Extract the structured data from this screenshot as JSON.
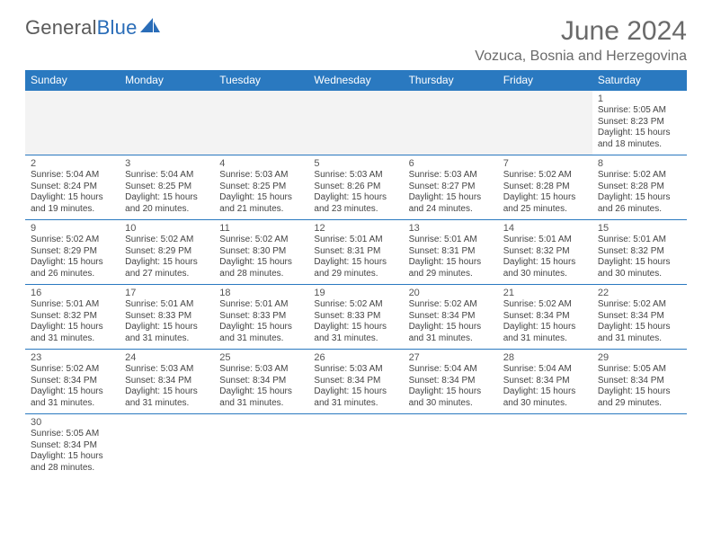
{
  "brand": {
    "part1": "General",
    "part2": "Blue"
  },
  "title": "June 2024",
  "location": "Vozuca, Bosnia and Herzegovina",
  "colors": {
    "header_bg": "#2a79c0",
    "header_text": "#ffffff",
    "border": "#2a79c0",
    "muted_text": "#6a6a6a",
    "body_text": "#444444",
    "brand_gray": "#5a5a5a",
    "brand_blue": "#2a6db8",
    "empty_bg": "#f3f3f3",
    "page_bg": "#ffffff"
  },
  "day_headers": [
    "Sunday",
    "Monday",
    "Tuesday",
    "Wednesday",
    "Thursday",
    "Friday",
    "Saturday"
  ],
  "weeks": [
    [
      null,
      null,
      null,
      null,
      null,
      null,
      {
        "n": "1",
        "sr": "Sunrise: 5:05 AM",
        "ss": "Sunset: 8:23 PM",
        "d1": "Daylight: 15 hours",
        "d2": "and 18 minutes."
      }
    ],
    [
      {
        "n": "2",
        "sr": "Sunrise: 5:04 AM",
        "ss": "Sunset: 8:24 PM",
        "d1": "Daylight: 15 hours",
        "d2": "and 19 minutes."
      },
      {
        "n": "3",
        "sr": "Sunrise: 5:04 AM",
        "ss": "Sunset: 8:25 PM",
        "d1": "Daylight: 15 hours",
        "d2": "and 20 minutes."
      },
      {
        "n": "4",
        "sr": "Sunrise: 5:03 AM",
        "ss": "Sunset: 8:25 PM",
        "d1": "Daylight: 15 hours",
        "d2": "and 21 minutes."
      },
      {
        "n": "5",
        "sr": "Sunrise: 5:03 AM",
        "ss": "Sunset: 8:26 PM",
        "d1": "Daylight: 15 hours",
        "d2": "and 23 minutes."
      },
      {
        "n": "6",
        "sr": "Sunrise: 5:03 AM",
        "ss": "Sunset: 8:27 PM",
        "d1": "Daylight: 15 hours",
        "d2": "and 24 minutes."
      },
      {
        "n": "7",
        "sr": "Sunrise: 5:02 AM",
        "ss": "Sunset: 8:28 PM",
        "d1": "Daylight: 15 hours",
        "d2": "and 25 minutes."
      },
      {
        "n": "8",
        "sr": "Sunrise: 5:02 AM",
        "ss": "Sunset: 8:28 PM",
        "d1": "Daylight: 15 hours",
        "d2": "and 26 minutes."
      }
    ],
    [
      {
        "n": "9",
        "sr": "Sunrise: 5:02 AM",
        "ss": "Sunset: 8:29 PM",
        "d1": "Daylight: 15 hours",
        "d2": "and 26 minutes."
      },
      {
        "n": "10",
        "sr": "Sunrise: 5:02 AM",
        "ss": "Sunset: 8:29 PM",
        "d1": "Daylight: 15 hours",
        "d2": "and 27 minutes."
      },
      {
        "n": "11",
        "sr": "Sunrise: 5:02 AM",
        "ss": "Sunset: 8:30 PM",
        "d1": "Daylight: 15 hours",
        "d2": "and 28 minutes."
      },
      {
        "n": "12",
        "sr": "Sunrise: 5:01 AM",
        "ss": "Sunset: 8:31 PM",
        "d1": "Daylight: 15 hours",
        "d2": "and 29 minutes."
      },
      {
        "n": "13",
        "sr": "Sunrise: 5:01 AM",
        "ss": "Sunset: 8:31 PM",
        "d1": "Daylight: 15 hours",
        "d2": "and 29 minutes."
      },
      {
        "n": "14",
        "sr": "Sunrise: 5:01 AM",
        "ss": "Sunset: 8:32 PM",
        "d1": "Daylight: 15 hours",
        "d2": "and 30 minutes."
      },
      {
        "n": "15",
        "sr": "Sunrise: 5:01 AM",
        "ss": "Sunset: 8:32 PM",
        "d1": "Daylight: 15 hours",
        "d2": "and 30 minutes."
      }
    ],
    [
      {
        "n": "16",
        "sr": "Sunrise: 5:01 AM",
        "ss": "Sunset: 8:32 PM",
        "d1": "Daylight: 15 hours",
        "d2": "and 31 minutes."
      },
      {
        "n": "17",
        "sr": "Sunrise: 5:01 AM",
        "ss": "Sunset: 8:33 PM",
        "d1": "Daylight: 15 hours",
        "d2": "and 31 minutes."
      },
      {
        "n": "18",
        "sr": "Sunrise: 5:01 AM",
        "ss": "Sunset: 8:33 PM",
        "d1": "Daylight: 15 hours",
        "d2": "and 31 minutes."
      },
      {
        "n": "19",
        "sr": "Sunrise: 5:02 AM",
        "ss": "Sunset: 8:33 PM",
        "d1": "Daylight: 15 hours",
        "d2": "and 31 minutes."
      },
      {
        "n": "20",
        "sr": "Sunrise: 5:02 AM",
        "ss": "Sunset: 8:34 PM",
        "d1": "Daylight: 15 hours",
        "d2": "and 31 minutes."
      },
      {
        "n": "21",
        "sr": "Sunrise: 5:02 AM",
        "ss": "Sunset: 8:34 PM",
        "d1": "Daylight: 15 hours",
        "d2": "and 31 minutes."
      },
      {
        "n": "22",
        "sr": "Sunrise: 5:02 AM",
        "ss": "Sunset: 8:34 PM",
        "d1": "Daylight: 15 hours",
        "d2": "and 31 minutes."
      }
    ],
    [
      {
        "n": "23",
        "sr": "Sunrise: 5:02 AM",
        "ss": "Sunset: 8:34 PM",
        "d1": "Daylight: 15 hours",
        "d2": "and 31 minutes."
      },
      {
        "n": "24",
        "sr": "Sunrise: 5:03 AM",
        "ss": "Sunset: 8:34 PM",
        "d1": "Daylight: 15 hours",
        "d2": "and 31 minutes."
      },
      {
        "n": "25",
        "sr": "Sunrise: 5:03 AM",
        "ss": "Sunset: 8:34 PM",
        "d1": "Daylight: 15 hours",
        "d2": "and 31 minutes."
      },
      {
        "n": "26",
        "sr": "Sunrise: 5:03 AM",
        "ss": "Sunset: 8:34 PM",
        "d1": "Daylight: 15 hours",
        "d2": "and 31 minutes."
      },
      {
        "n": "27",
        "sr": "Sunrise: 5:04 AM",
        "ss": "Sunset: 8:34 PM",
        "d1": "Daylight: 15 hours",
        "d2": "and 30 minutes."
      },
      {
        "n": "28",
        "sr": "Sunrise: 5:04 AM",
        "ss": "Sunset: 8:34 PM",
        "d1": "Daylight: 15 hours",
        "d2": "and 30 minutes."
      },
      {
        "n": "29",
        "sr": "Sunrise: 5:05 AM",
        "ss": "Sunset: 8:34 PM",
        "d1": "Daylight: 15 hours",
        "d2": "and 29 minutes."
      }
    ],
    [
      {
        "n": "30",
        "sr": "Sunrise: 5:05 AM",
        "ss": "Sunset: 8:34 PM",
        "d1": "Daylight: 15 hours",
        "d2": "and 28 minutes."
      },
      null,
      null,
      null,
      null,
      null,
      null
    ]
  ]
}
